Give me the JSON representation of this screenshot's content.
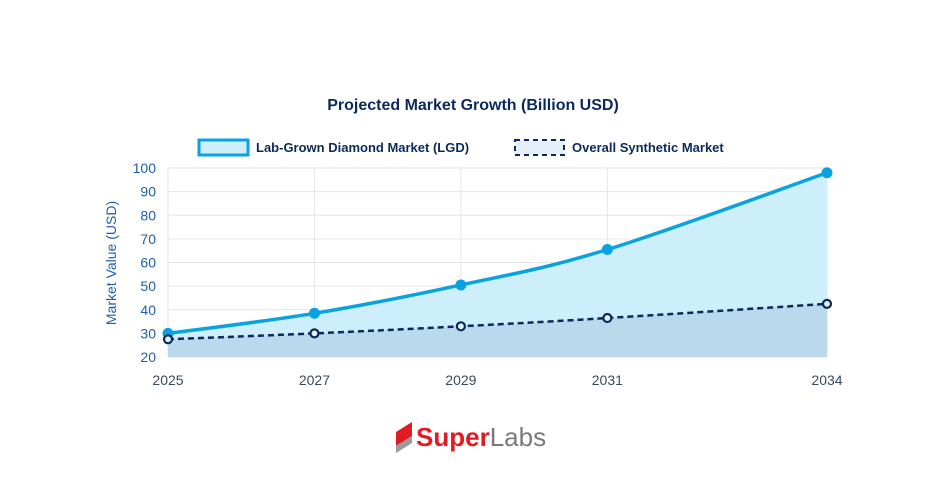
{
  "chart_data": {
    "type": "line",
    "title": "Projected Market Growth (Billion USD)",
    "xlabel": "",
    "ylabel": "Market Value (USD)",
    "x": [
      "2025",
      "2027",
      "2029",
      "2031",
      "2034"
    ],
    "ylim": [
      20,
      100
    ],
    "yticks": [
      20,
      30,
      40,
      50,
      60,
      70,
      80,
      90,
      100
    ],
    "grid": true,
    "legend": "top-center",
    "series": [
      {
        "name": "Lab-Grown Diamond Market (LGD)",
        "values": [
          30,
          38.5,
          50.5,
          65.5,
          98
        ],
        "color": "#0aa3e0",
        "fill": "#cdeefb",
        "style": "solid"
      },
      {
        "name": "Overall Synthetic Market",
        "values": [
          27.5,
          30,
          33,
          36.5,
          42.5
        ],
        "color": "#0b2a5c",
        "fill": "#b7d5ea",
        "style": "dashed"
      }
    ]
  },
  "logo": {
    "part1": "Super",
    "part2": "Labs",
    "colors": {
      "red": "#e01b22",
      "gray": "#7a7a7a"
    }
  }
}
